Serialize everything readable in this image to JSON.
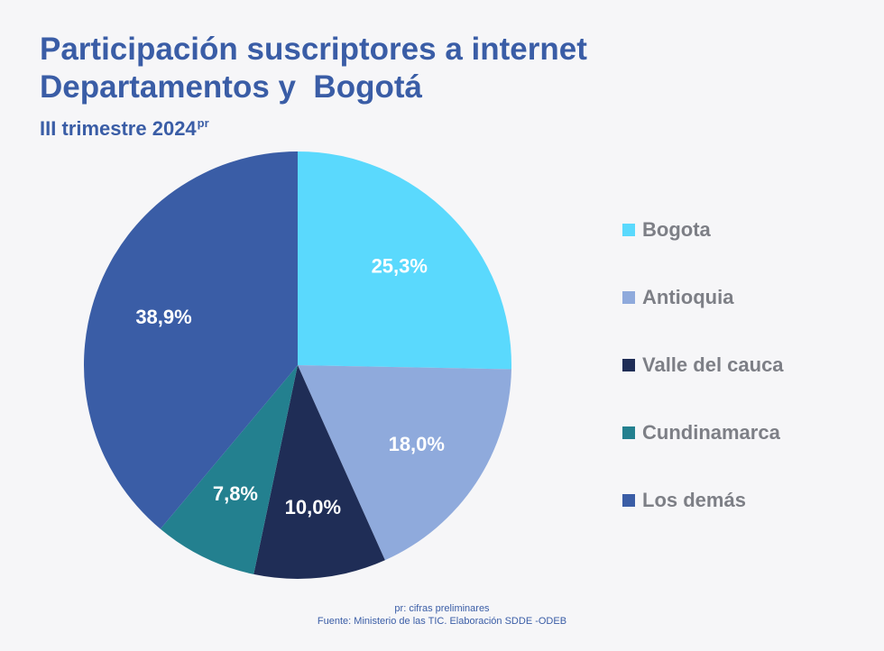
{
  "chart_data": {
    "type": "pie",
    "title_line1": "Participación suscriptores a internet",
    "title_line2": "Departamentos y  Bogotá",
    "subtitle": "III trimestre 2024",
    "subtitle_superscript": "pr",
    "slices": [
      {
        "name": "Bogota",
        "value": 25.3,
        "label": "25,3%",
        "color": "#5ad9fd"
      },
      {
        "name": "Antioquia",
        "value": 18.0,
        "label": "18,0%",
        "color": "#8faadc"
      },
      {
        "name": "Valle del cauca",
        "value": 10.0,
        "label": "10,0%",
        "color": "#1f2d56"
      },
      {
        "name": "Cundinamarca",
        "value": 7.8,
        "label": "7,8%",
        "color": "#23808f"
      },
      {
        "name": "Los demás",
        "value": 38.9,
        "label": "38,9%",
        "color": "#3a5da6"
      }
    ],
    "start_angle": "12 o'clock",
    "direction": "clockwise",
    "legend_position": "right"
  },
  "footer": {
    "note": "pr: cifras preliminares",
    "source": "Fuente: Ministerio de las TIC. Elaboración SDDE -ODEB"
  }
}
